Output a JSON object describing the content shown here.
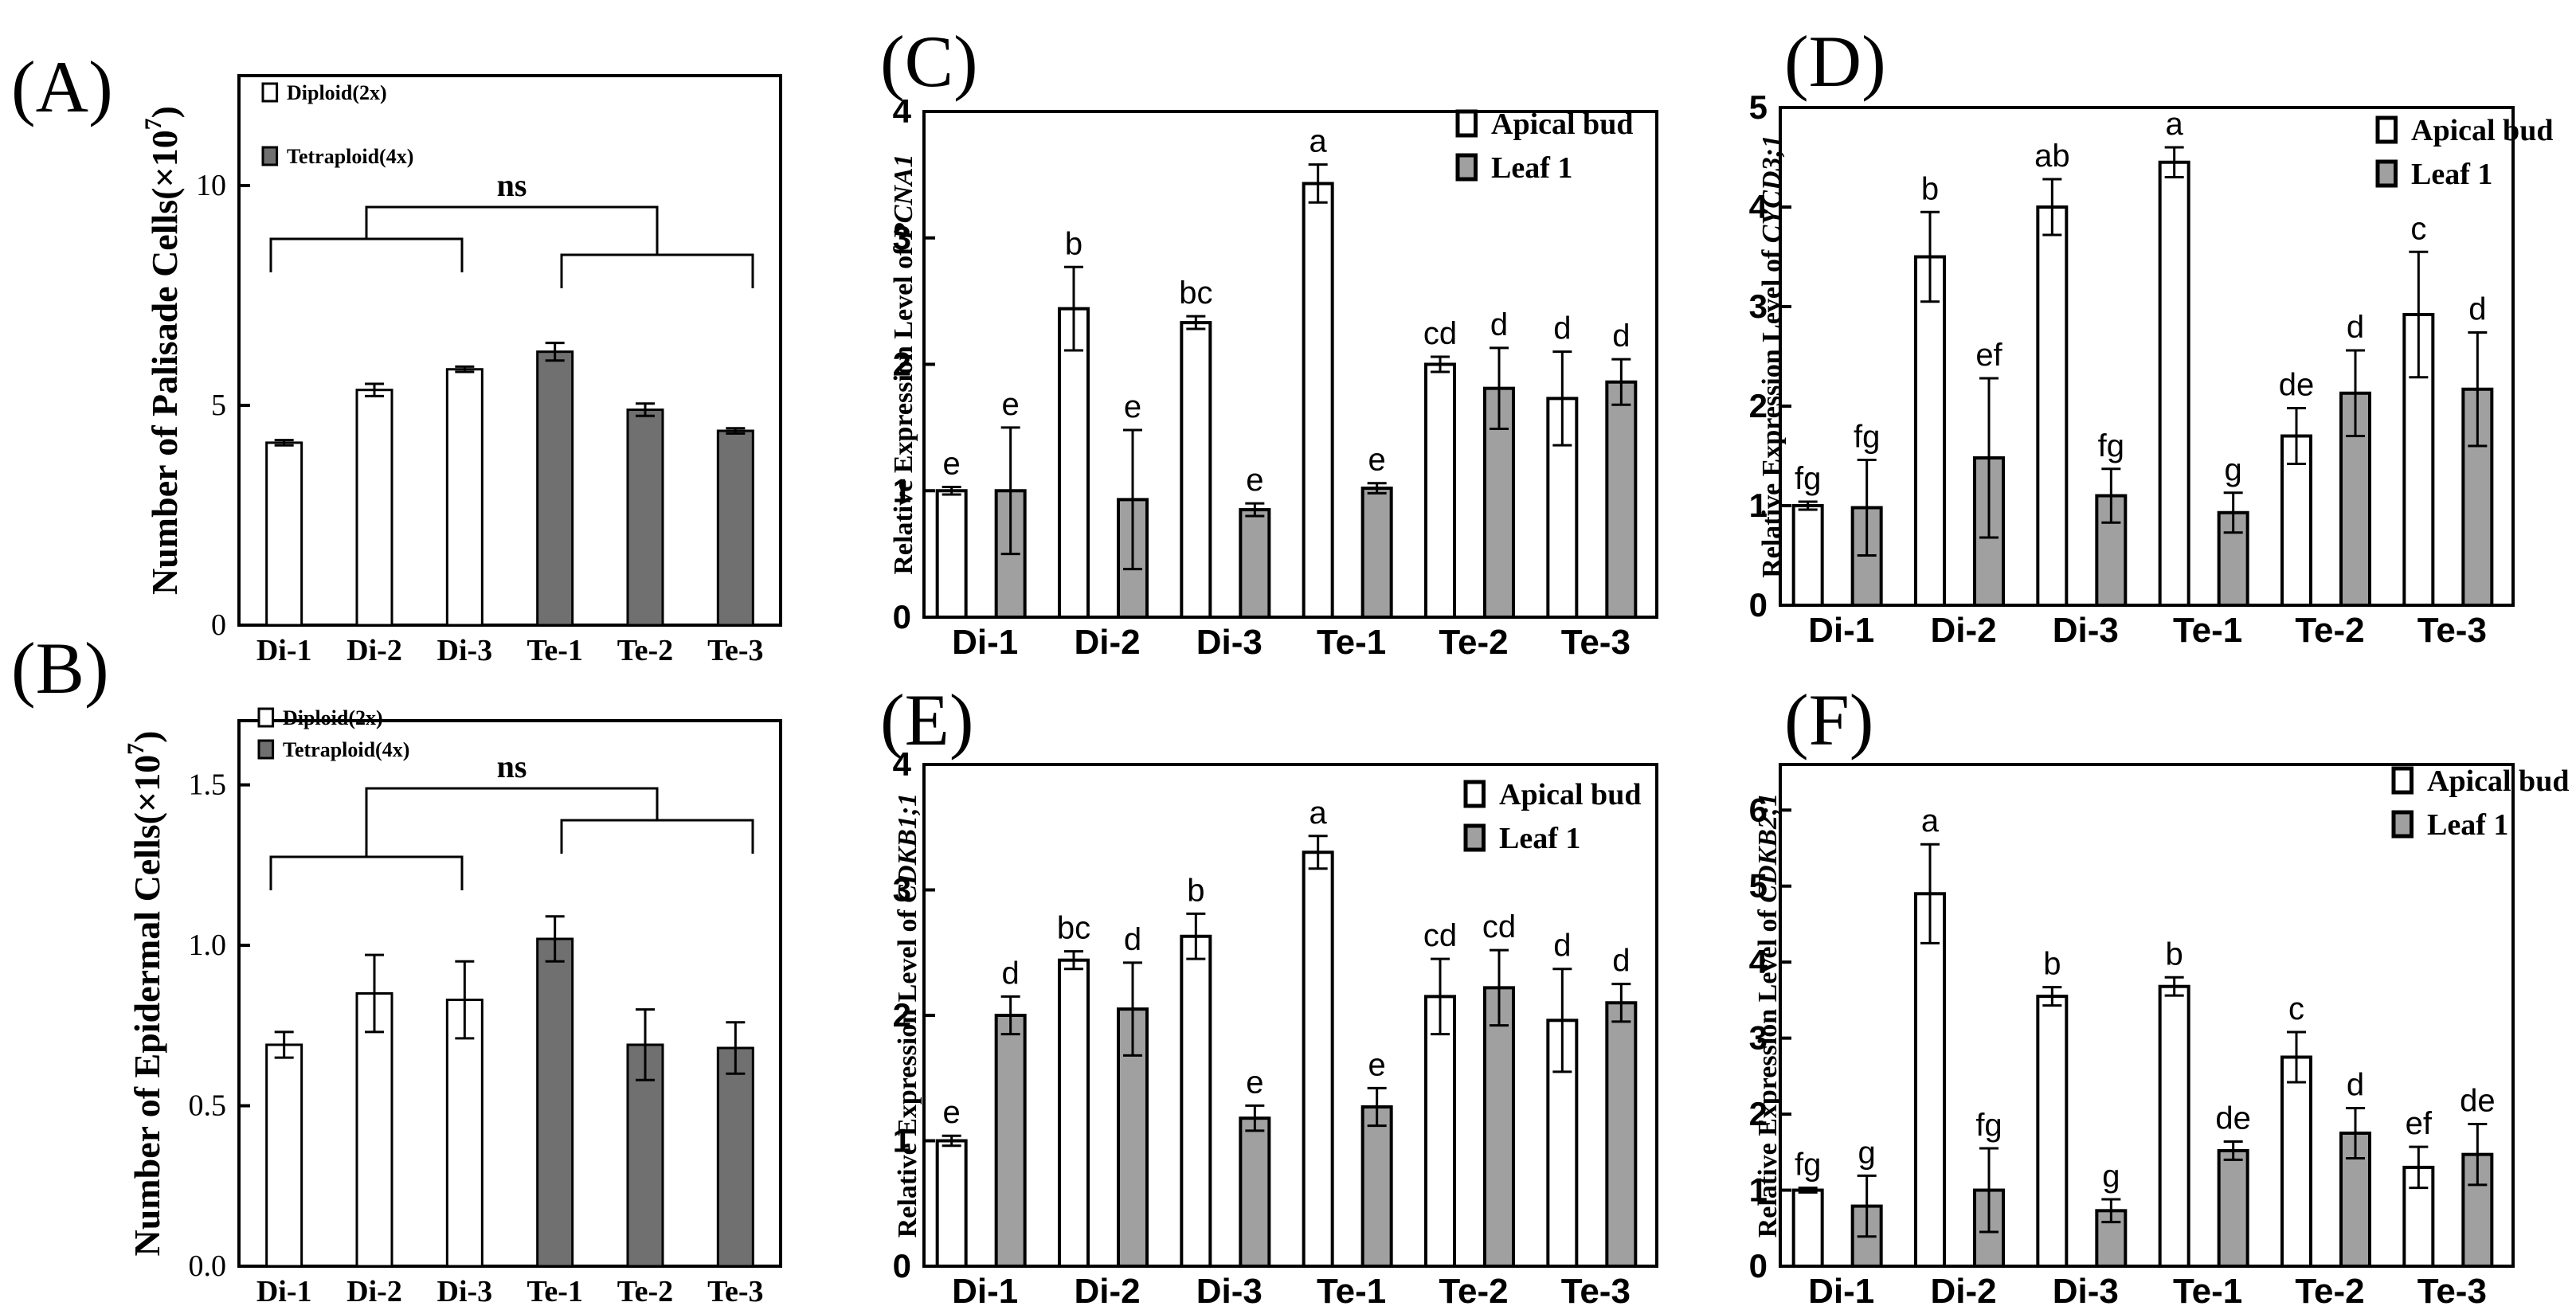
{
  "chart_data": [
    {
      "id": "A",
      "panel_label": "(A)",
      "type": "bar",
      "ylabel_parts": [
        "Number of Palisade Cells(×10",
        "7",
        ")"
      ],
      "categories": [
        "Di-1",
        "Di-2",
        "Di-3",
        "Te-1",
        "Te-2",
        "Te-3"
      ],
      "ylim": [
        0,
        12.5
      ],
      "yticks": [
        0,
        5,
        10
      ],
      "series": [
        {
          "name": "Diploid(2x)",
          "fill": "#ffffff",
          "values": [
            4.15,
            5.35,
            5.82,
            null,
            null,
            null
          ],
          "errors": [
            0.06,
            0.14,
            0.06,
            null,
            null,
            null
          ]
        },
        {
          "name": "Tetraploid(4x)",
          "fill": "#707070",
          "values": [
            null,
            null,
            null,
            6.22,
            4.9,
            4.42
          ],
          "errors": [
            null,
            null,
            null,
            0.2,
            0.14,
            0.06
          ]
        }
      ],
      "annotation": "ns",
      "legend_placement": "top-left",
      "grid": false
    },
    {
      "id": "B",
      "panel_label": "(B)",
      "type": "bar",
      "ylabel_parts": [
        "Number of Epidermal Cells(×10",
        "7",
        ")"
      ],
      "categories": [
        "Di-1",
        "Di-2",
        "Di-3",
        "Te-1",
        "Te-2",
        "Te-3"
      ],
      "ylim": [
        0,
        1.7
      ],
      "yticks": [
        "0.0",
        "0.5",
        "1.0",
        "1.5"
      ],
      "series": [
        {
          "name": "Diploid(2x)",
          "fill": "#ffffff",
          "values": [
            0.69,
            0.85,
            0.83,
            null,
            null,
            null
          ],
          "errors": [
            0.04,
            0.12,
            0.12,
            null,
            null,
            null
          ]
        },
        {
          "name": "Tetraploid(4x)",
          "fill": "#707070",
          "values": [
            null,
            null,
            null,
            1.02,
            0.69,
            0.68
          ],
          "errors": [
            null,
            null,
            null,
            0.07,
            0.11,
            0.08
          ]
        }
      ],
      "annotation": "ns",
      "legend_placement": "top-left",
      "grid": false
    },
    {
      "id": "C",
      "panel_label": "(C)",
      "type": "bar",
      "ylabel_parts": [
        "Relative Expression Level of ",
        "PCNA1"
      ],
      "categories": [
        "Di-1",
        "Di-2",
        "Di-3",
        "Te-1",
        "Te-2",
        "Te-3"
      ],
      "ylim": [
        0,
        4
      ],
      "yticks": [
        0,
        1,
        2,
        3,
        4
      ],
      "series": [
        {
          "name": "Apical bud",
          "fill": "#ffffff",
          "values": [
            1.0,
            2.44,
            2.33,
            3.43,
            2.0,
            1.73
          ],
          "errors": [
            0.03,
            0.33,
            0.05,
            0.15,
            0.06,
            0.37
          ],
          "letters": [
            "e",
            "b",
            "bc",
            "a",
            "cd",
            "d"
          ]
        },
        {
          "name": "Leaf 1",
          "fill": "#a0a0a0",
          "values": [
            1.0,
            0.93,
            0.85,
            1.02,
            1.81,
            1.86
          ],
          "errors": [
            0.5,
            0.55,
            0.05,
            0.04,
            0.32,
            0.18
          ],
          "letters": [
            "e",
            "e",
            "e",
            "e",
            "d",
            "d"
          ]
        }
      ],
      "legend_placement": "top-right",
      "grid": false
    },
    {
      "id": "D",
      "panel_label": "(D)",
      "type": "bar",
      "ylabel_parts": [
        "Relative Expression Level of ",
        "CYCD3;1"
      ],
      "categories": [
        "Di-1",
        "Di-2",
        "Di-3",
        "Te-1",
        "Te-2",
        "Te-3"
      ],
      "ylim": [
        0,
        5
      ],
      "yticks": [
        0,
        1,
        2,
        3,
        4,
        5
      ],
      "series": [
        {
          "name": "Apical bud",
          "fill": "#ffffff",
          "values": [
            1.0,
            3.5,
            4.0,
            4.45,
            1.7,
            2.92
          ],
          "errors": [
            0.04,
            0.45,
            0.28,
            0.15,
            0.28,
            0.63
          ],
          "letters": [
            "fg",
            "b",
            "ab",
            "a",
            "de",
            "c"
          ]
        },
        {
          "name": "Leaf 1",
          "fill": "#a0a0a0",
          "values": [
            0.98,
            1.48,
            1.1,
            0.93,
            2.13,
            2.17
          ],
          "errors": [
            0.48,
            0.8,
            0.27,
            0.2,
            0.43,
            0.57
          ],
          "letters": [
            "fg",
            "ef",
            "fg",
            "g",
            "d",
            "d"
          ]
        }
      ],
      "legend_placement": "top-right",
      "grid": false
    },
    {
      "id": "E",
      "panel_label": "(E)",
      "type": "bar",
      "ylabel_parts": [
        "Relative Expression Level of ",
        "CDKB1;1"
      ],
      "categories": [
        "Di-1",
        "Di-2",
        "Di-3",
        "Te-1",
        "Te-2",
        "Te-3"
      ],
      "ylim": [
        0,
        4
      ],
      "yticks": [
        0,
        1,
        2,
        3,
        4
      ],
      "series": [
        {
          "name": "Apical bud",
          "fill": "#ffffff",
          "values": [
            1.0,
            2.44,
            2.63,
            3.3,
            2.15,
            1.96
          ],
          "errors": [
            0.04,
            0.07,
            0.18,
            0.13,
            0.3,
            0.41
          ],
          "letters": [
            "e",
            "bc",
            "b",
            "a",
            "cd",
            "d"
          ]
        },
        {
          "name": "Leaf 1",
          "fill": "#a0a0a0",
          "values": [
            2.0,
            2.05,
            1.18,
            1.27,
            2.22,
            2.1
          ],
          "errors": [
            0.15,
            0.37,
            0.1,
            0.15,
            0.3,
            0.15
          ],
          "letters": [
            "d",
            "d",
            "e",
            "e",
            "cd",
            "d"
          ]
        }
      ],
      "legend_placement": "top-right",
      "grid": false
    },
    {
      "id": "F",
      "panel_label": "(F)",
      "type": "bar",
      "ylabel_parts": [
        "Relative Expression Level of ",
        "CDKB2;1"
      ],
      "categories": [
        "Di-1",
        "Di-2",
        "Di-3",
        "Te-1",
        "Te-2",
        "Te-3"
      ],
      "ylim": [
        0,
        6.6
      ],
      "yticks": [
        0,
        1,
        2,
        3,
        4,
        5,
        6
      ],
      "series": [
        {
          "name": "Apical bud",
          "fill": "#ffffff",
          "values": [
            1.0,
            4.9,
            3.55,
            3.68,
            2.75,
            1.3
          ],
          "errors": [
            0.03,
            0.65,
            0.12,
            0.12,
            0.33,
            0.27
          ],
          "letters": [
            "fg",
            "a",
            "b",
            "b",
            "c",
            "ef"
          ]
        },
        {
          "name": "Leaf 1",
          "fill": "#a0a0a0",
          "values": [
            0.79,
            1.0,
            0.73,
            1.52,
            1.75,
            1.47
          ],
          "errors": [
            0.4,
            0.55,
            0.15,
            0.12,
            0.33,
            0.4
          ],
          "letters": [
            "g",
            "fg",
            "g",
            "de",
            "d",
            "de"
          ]
        }
      ],
      "legend_placement": "top-right",
      "grid": false
    }
  ]
}
